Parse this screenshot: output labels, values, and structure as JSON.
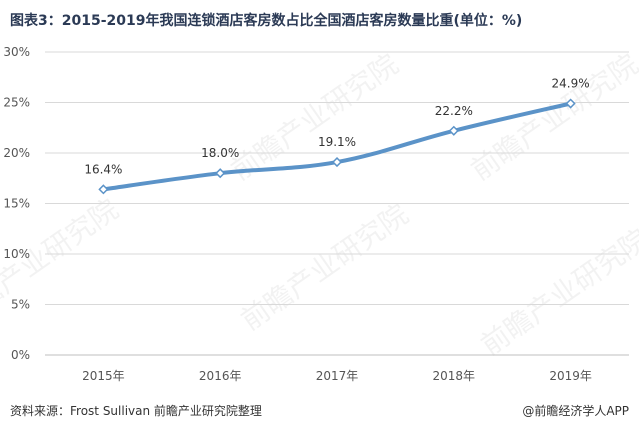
{
  "title": "图表3：2015-2019年我国连锁酒店客房数占比全国酒店客房数量比重(单位：%)",
  "footer": {
    "source": "资料来源：Frost Sullivan 前瞻产业研究院整理",
    "brand": "@前瞻经济学人APP"
  },
  "watermark": {
    "text": "前瞻产业研究院"
  },
  "colors": {
    "line": "#5b93c8",
    "grid": "#d9d9d9",
    "axis_text": "#555555",
    "title": "#2b3a55"
  },
  "chart_data": {
    "type": "line",
    "categories": [
      "2015年",
      "2016年",
      "2017年",
      "2018年",
      "2019年"
    ],
    "values": [
      16.4,
      18.0,
      19.1,
      22.2,
      24.9
    ],
    "data_labels": [
      "16.4%",
      "18.0%",
      "19.1%",
      "22.2%",
      "24.9%"
    ],
    "ylim": [
      0,
      30
    ],
    "yticks": [
      "0%",
      "5%",
      "10%",
      "15%",
      "20%",
      "25%",
      "30%"
    ],
    "grid": true,
    "marker": "diamond"
  }
}
